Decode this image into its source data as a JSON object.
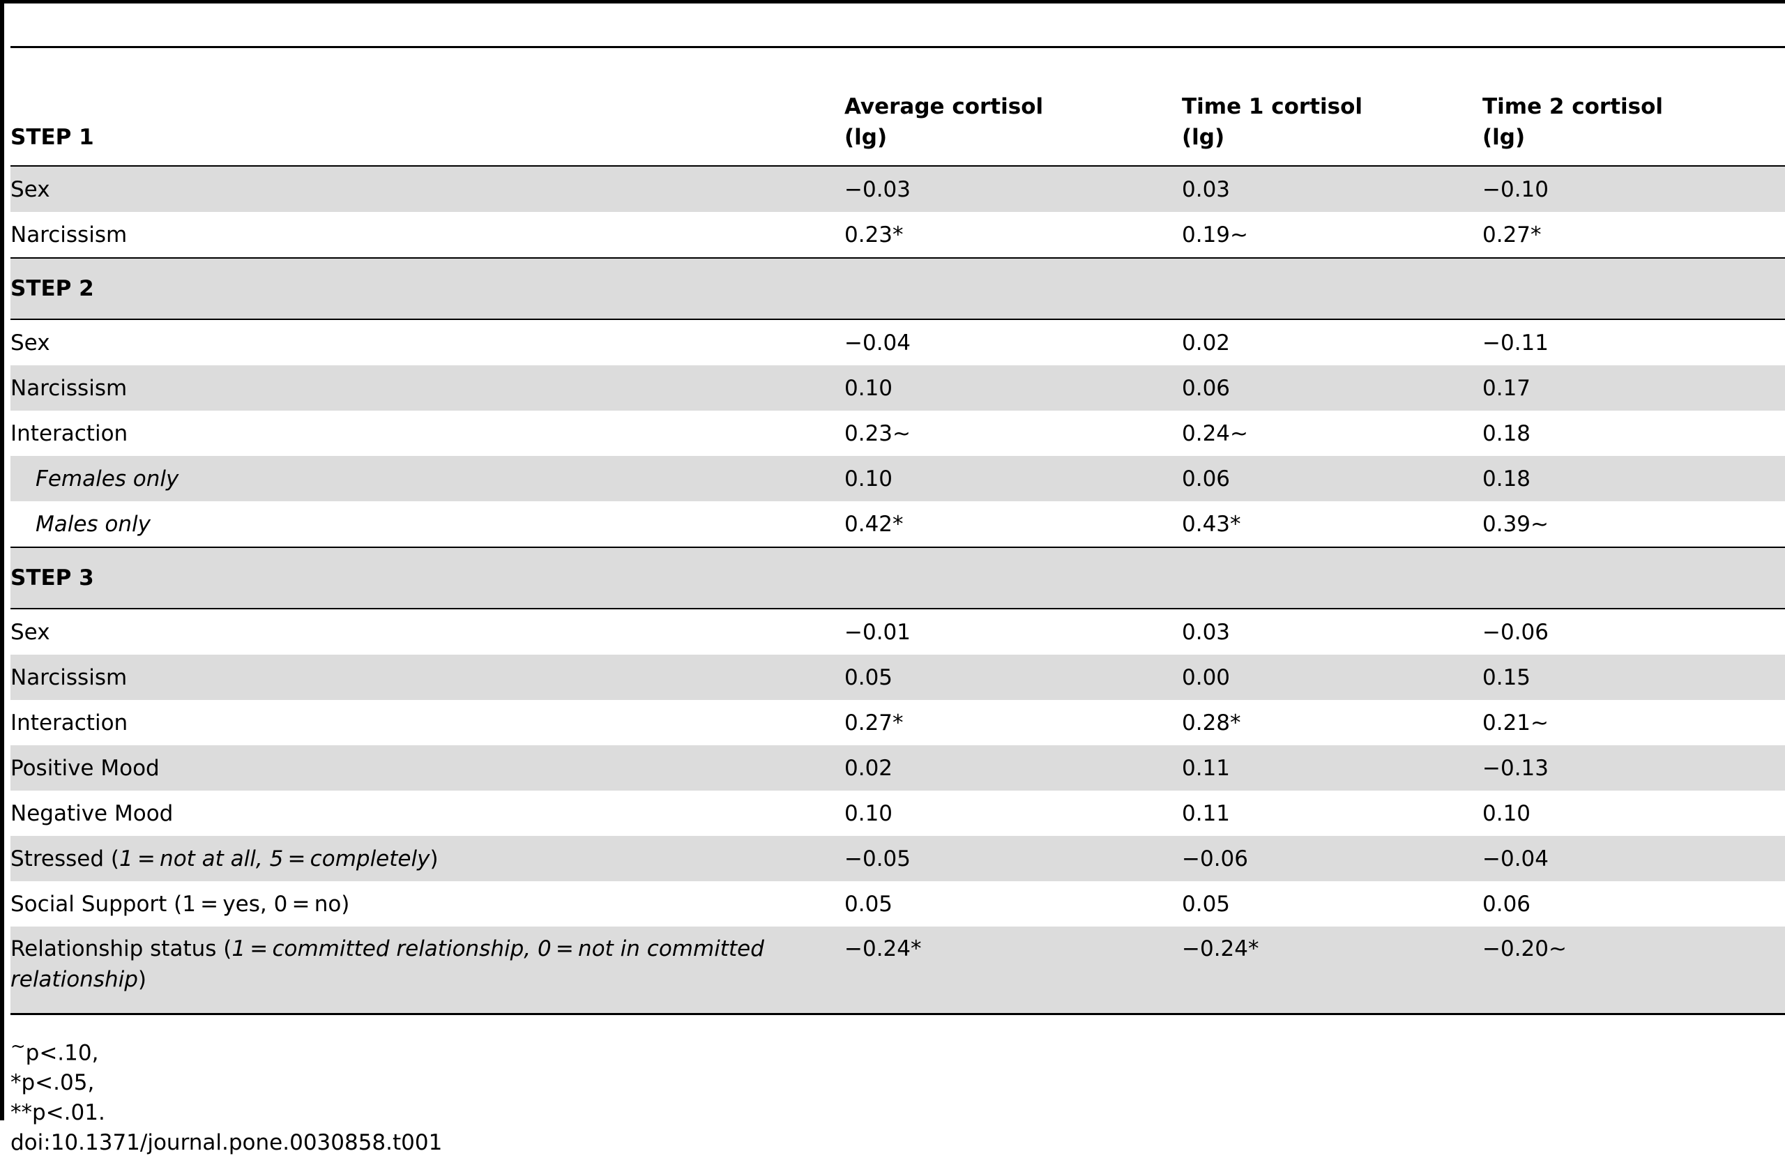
{
  "header": {
    "step_label": "STEP 1",
    "columns": [
      {
        "line1": "Average cortisol",
        "line2": "(lg)"
      },
      {
        "line1": "Time 1 cortisol",
        "line2": "(lg)"
      },
      {
        "line1": "Time 2 cortisol",
        "line2": "(lg)"
      }
    ]
  },
  "rows": [
    {
      "label": "Sex",
      "v": [
        "−0.03",
        "0.03",
        "−0.10"
      ]
    },
    {
      "label": "Narcissism",
      "v": [
        "0.23*",
        "0.19∼",
        "0.27*"
      ]
    },
    {
      "step": "STEP 2"
    },
    {
      "label": "Sex",
      "v": [
        "−0.04",
        "0.02",
        "−0.11"
      ]
    },
    {
      "label": "Narcissism",
      "v": [
        "0.10",
        "0.06",
        "0.17"
      ]
    },
    {
      "label": "Interaction",
      "v": [
        "0.23∼",
        "0.24∼",
        "0.18"
      ]
    },
    {
      "label": "Females only",
      "v": [
        "0.10",
        "0.06",
        "0.18"
      ]
    },
    {
      "label": "Males only",
      "v": [
        "0.42*",
        "0.43*",
        "0.39∼"
      ]
    },
    {
      "step": "STEP 3"
    },
    {
      "label": "Sex",
      "v": [
        "−0.01",
        "0.03",
        "−0.06"
      ]
    },
    {
      "label": "Narcissism",
      "v": [
        "0.05",
        "0.00",
        "0.15"
      ]
    },
    {
      "label": "Interaction",
      "v": [
        "0.27*",
        "0.28*",
        "0.21∼"
      ]
    },
    {
      "label": "Positive Mood",
      "v": [
        "0.02",
        "0.11",
        "−0.13"
      ]
    },
    {
      "label": "Negative Mood",
      "v": [
        "0.10",
        "0.11",
        "0.10"
      ]
    },
    {
      "label_pre": "Stressed (",
      "label_em": "1 = not at all, 5 = completely",
      "label_post": ")",
      "v": [
        "−0.05",
        "−0.06",
        "−0.04"
      ]
    },
    {
      "label": "Social Support (1 = yes, 0 = no)",
      "v": [
        "0.05",
        "0.05",
        "0.06"
      ]
    },
    {
      "label_pre": "Relationship status (",
      "label_em": "1 = committed relationship, 0 = not in committed relationship",
      "label_post": ")",
      "v": [
        "−0.24*",
        "−0.24*",
        "−0.20∼"
      ]
    }
  ],
  "footer": {
    "note1_mark": "~",
    "note1_text": "p<.10,",
    "note2": "*p<.05,",
    "note3": "**p<.01.",
    "doi": "doi:10.1371/journal.pone.0030858.t001"
  }
}
